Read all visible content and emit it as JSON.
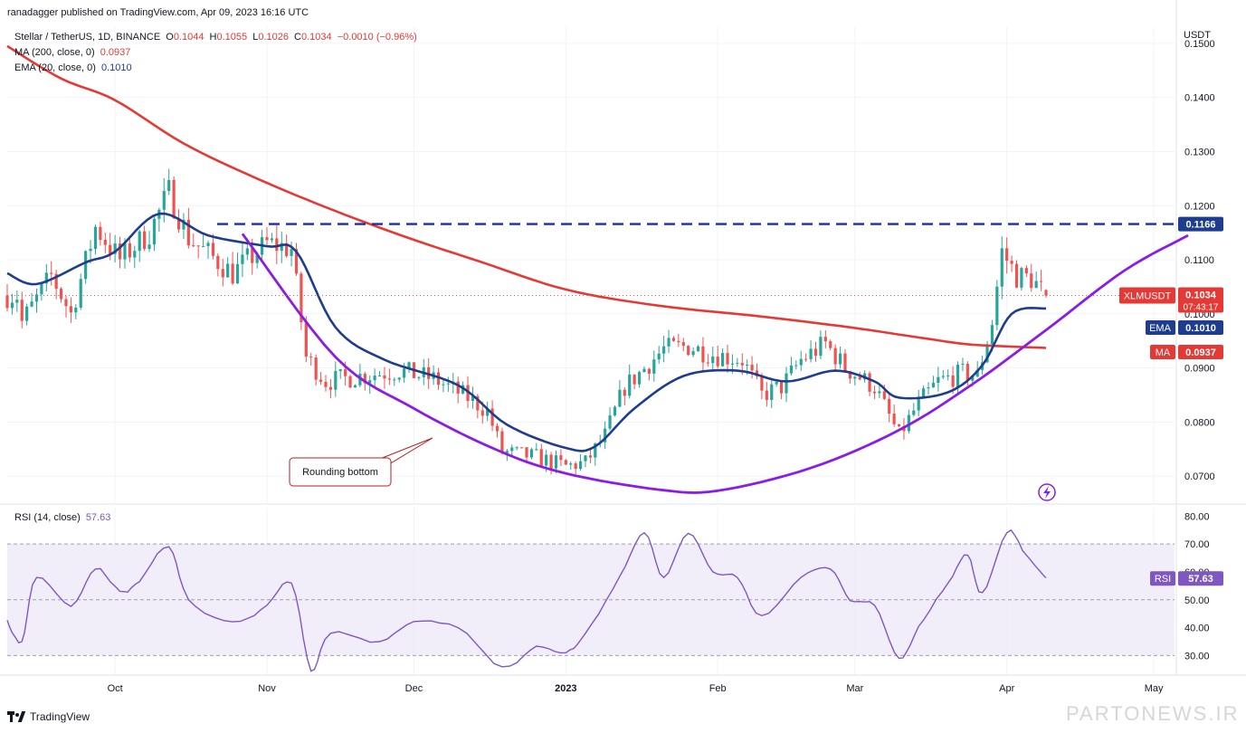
{
  "header": {
    "publisher_line": "ranadagger published on TradingView.com, Apr 09, 2023 16:16 UTC"
  },
  "legend": {
    "symbol": "Stellar / TetherUS, 1D, BINANCE",
    "ohlc": {
      "o_label": "O",
      "o": "0.1044",
      "h_label": "H",
      "h": "0.1055",
      "l_label": "L",
      "l": "0.1026",
      "c_label": "C",
      "c": "0.1034",
      "change": "−0.0010 (−0.96%)"
    },
    "ma_label": "MA (200, close, 0)",
    "ma_value": "0.0937",
    "ema_label": "EMA (20, close, 0)",
    "ema_value": "0.1010",
    "rsi_label": "RSI (14, close)",
    "rsi_value": "57.63"
  },
  "price_axis": {
    "unit": "USDT",
    "ticks": [
      "0.1500",
      "0.1400",
      "0.1300",
      "0.1200",
      "0.1100",
      "0.1000",
      "0.0900",
      "0.0800",
      "0.0700"
    ]
  },
  "rsi_axis": {
    "ticks": [
      "80.00",
      "70.00",
      "60.00",
      "50.00",
      "40.00",
      "30.00"
    ]
  },
  "time_axis": {
    "ticks": [
      "Oct",
      "Nov",
      "Dec",
      "2023",
      "Feb",
      "Mar",
      "Apr",
      "May"
    ]
  },
  "badges": {
    "resistance": "0.1166",
    "symbol_name": "XLMUSDT",
    "symbol_price": "0.1034",
    "countdown": "07:43:17",
    "ema_tag": "EMA",
    "ema_price": "0.1010",
    "ma_tag": "MA",
    "ma_price": "0.0937",
    "rsi_tag": "RSI",
    "rsi_price": "57.63"
  },
  "annotation": "Rounding bottom",
  "footer": {
    "brand": "TradingView"
  },
  "watermark": "PARTONEWS.IR",
  "colors": {
    "up": "#26a69a",
    "down": "#ef5350",
    "ma": "#e53935",
    "ema": "#1e3d8f",
    "pattern": "#8a1ce3",
    "resistance": "#1a2fa8",
    "rsi_line": "#7e57c2",
    "rsi_band": "#ede7f6",
    "badge_red": "#e53935",
    "badge_navy": "#1e3d8f",
    "annotation_border": "#b22222"
  },
  "chart_data": {
    "type": "candlestick",
    "title": "Stellar / TetherUS, 1D, BINANCE",
    "price_range": [
      0.065,
      0.153
    ],
    "rsi_range": [
      23,
      83
    ],
    "resistance_level": 0.1166,
    "rsi_band": [
      30,
      70
    ],
    "series": [
      {
        "name": "XLMUSDT",
        "anchors": [
          [
            "2022-09-12",
            0.0985
          ],
          [
            "2022-09-18",
            0.107
          ],
          [
            "2022-09-22",
            0.1
          ],
          [
            "2022-09-27",
            0.116
          ],
          [
            "2022-10-02",
            0.11
          ],
          [
            "2022-10-08",
            0.115
          ],
          [
            "2022-10-12",
            0.1225
          ],
          [
            "2022-10-16",
            0.114
          ],
          [
            "2022-10-25",
            0.1075
          ],
          [
            "2022-11-01",
            0.113
          ],
          [
            "2022-11-06",
            0.112
          ],
          [
            "2022-11-09",
            0.092
          ],
          [
            "2022-11-13",
            0.0875
          ],
          [
            "2022-11-20",
            0.0885
          ],
          [
            "2022-11-28",
            0.0895
          ],
          [
            "2022-12-05",
            0.088
          ],
          [
            "2022-12-12",
            0.0845
          ],
          [
            "2022-12-16",
            0.082
          ],
          [
            "2022-12-19",
            0.0745
          ],
          [
            "2022-12-26",
            0.0735
          ],
          [
            "2023-01-01",
            0.0718
          ],
          [
            "2023-01-05",
            0.0725
          ],
          [
            "2023-01-09",
            0.0775
          ],
          [
            "2023-01-13",
            0.0865
          ],
          [
            "2023-01-16",
            0.089
          ],
          [
            "2023-01-21",
            0.0935
          ],
          [
            "2023-01-26",
            0.094
          ],
          [
            "2023-01-31",
            0.0925
          ],
          [
            "2023-02-06",
            0.0915
          ],
          [
            "2023-02-10",
            0.085
          ],
          [
            "2023-02-14",
            0.0865
          ],
          [
            "2023-02-18",
            0.0915
          ],
          [
            "2023-02-23",
            0.0945
          ],
          [
            "2023-02-27",
            0.09
          ],
          [
            "2023-03-05",
            0.0865
          ],
          [
            "2023-03-10",
            0.0775
          ],
          [
            "2023-03-14",
            0.0835
          ],
          [
            "2023-03-18",
            0.0875
          ],
          [
            "2023-03-23",
            0.089
          ],
          [
            "2023-03-26",
            0.0885
          ],
          [
            "2023-03-29",
            0.0985
          ],
          [
            "2023-03-31",
            0.1115
          ],
          [
            "2023-04-03",
            0.107
          ],
          [
            "2023-04-06",
            0.1065
          ],
          [
            "2023-04-09",
            0.1034
          ]
        ]
      },
      {
        "name": "MA (200, close, 0)",
        "values": [
          [
            "2022-09-09",
            0.1495
          ],
          [
            "2022-09-20",
            0.1435
          ],
          [
            "2022-10-01",
            0.1395
          ],
          [
            "2022-10-15",
            0.1315
          ],
          [
            "2022-10-30",
            0.125
          ],
          [
            "2022-11-15",
            0.119
          ],
          [
            "2022-11-30",
            0.114
          ],
          [
            "2022-12-15",
            0.1095
          ],
          [
            "2023-01-01",
            0.1045
          ],
          [
            "2023-01-20",
            0.1015
          ],
          [
            "2023-02-10",
            0.0995
          ],
          [
            "2023-02-28",
            0.0975
          ],
          [
            "2023-03-15",
            0.0955
          ],
          [
            "2023-03-25",
            0.0943
          ],
          [
            "2023-04-09",
            0.0937
          ]
        ]
      },
      {
        "name": "EMA (20, close, 0)",
        "values": [
          [
            "2022-09-09",
            0.1075
          ],
          [
            "2022-09-15",
            0.1055
          ],
          [
            "2022-09-25",
            0.1095
          ],
          [
            "2022-10-01",
            0.1115
          ],
          [
            "2022-10-10",
            0.1185
          ],
          [
            "2022-10-20",
            0.1145
          ],
          [
            "2022-11-01",
            0.1125
          ],
          [
            "2022-11-07",
            0.1115
          ],
          [
            "2022-11-15",
            0.0975
          ],
          [
            "2022-11-25",
            0.0915
          ],
          [
            "2022-12-10",
            0.0868
          ],
          [
            "2022-12-20",
            0.0795
          ],
          [
            "2023-01-01",
            0.0752
          ],
          [
            "2023-01-07",
            0.0755
          ],
          [
            "2023-01-15",
            0.0825
          ],
          [
            "2023-01-25",
            0.0885
          ],
          [
            "2023-02-05",
            0.0895
          ],
          [
            "2023-02-15",
            0.0875
          ],
          [
            "2023-02-25",
            0.0895
          ],
          [
            "2023-03-05",
            0.0875
          ],
          [
            "2023-03-10",
            0.0845
          ],
          [
            "2023-03-20",
            0.0855
          ],
          [
            "2023-03-27",
            0.0905
          ],
          [
            "2023-04-02",
            0.1
          ],
          [
            "2023-04-09",
            0.101
          ]
        ]
      },
      {
        "name": "Rounding bottom",
        "values": [
          [
            "2022-10-27",
            0.1148
          ],
          [
            "2022-11-15",
            0.092
          ],
          [
            "2022-12-01",
            0.0825
          ],
          [
            "2022-12-18",
            0.0748
          ],
          [
            "2023-01-01",
            0.0705
          ],
          [
            "2023-01-20",
            0.0675
          ],
          [
            "2023-02-01",
            0.0673
          ],
          [
            "2023-02-20",
            0.0715
          ],
          [
            "2023-03-10",
            0.0785
          ],
          [
            "2023-03-25",
            0.087
          ],
          [
            "2023-04-09",
            0.097
          ],
          [
            "2023-04-25",
            0.108
          ],
          [
            "2023-05-08",
            0.1145
          ]
        ]
      },
      {
        "name": "RSI (14, close)",
        "values": [
          [
            "2022-09-09",
            42
          ],
          [
            "2022-09-12",
            35
          ],
          [
            "2022-09-15",
            58
          ],
          [
            "2022-09-22",
            48
          ],
          [
            "2022-09-27",
            61
          ],
          [
            "2022-10-02",
            53
          ],
          [
            "2022-10-06",
            57
          ],
          [
            "2022-10-12",
            69
          ],
          [
            "2022-10-16",
            50
          ],
          [
            "2022-10-25",
            42
          ],
          [
            "2022-11-01",
            48
          ],
          [
            "2022-11-06",
            56
          ],
          [
            "2022-11-10",
            25
          ],
          [
            "2022-11-14",
            38
          ],
          [
            "2022-11-24",
            35
          ],
          [
            "2022-12-01",
            42
          ],
          [
            "2022-12-10",
            40
          ],
          [
            "2022-12-19",
            26
          ],
          [
            "2022-12-26",
            33
          ],
          [
            "2023-01-01",
            31
          ],
          [
            "2023-01-05",
            38
          ],
          [
            "2023-01-12",
            58
          ],
          [
            "2023-01-17",
            74
          ],
          [
            "2023-01-21",
            58
          ],
          [
            "2023-01-26",
            74
          ],
          [
            "2023-01-31",
            60
          ],
          [
            "2023-02-05",
            58
          ],
          [
            "2023-02-10",
            44
          ],
          [
            "2023-02-18",
            58
          ],
          [
            "2023-02-24",
            61
          ],
          [
            "2023-02-28",
            50
          ],
          [
            "2023-03-05",
            48
          ],
          [
            "2023-03-10",
            29
          ],
          [
            "2023-03-14",
            40
          ],
          [
            "2023-03-20",
            56
          ],
          [
            "2023-03-24",
            66
          ],
          [
            "2023-03-27",
            52
          ],
          [
            "2023-04-01",
            74
          ],
          [
            "2023-04-05",
            66
          ],
          [
            "2023-04-09",
            57.63
          ]
        ]
      }
    ],
    "xlabel": "",
    "ylabel": "USDT"
  }
}
